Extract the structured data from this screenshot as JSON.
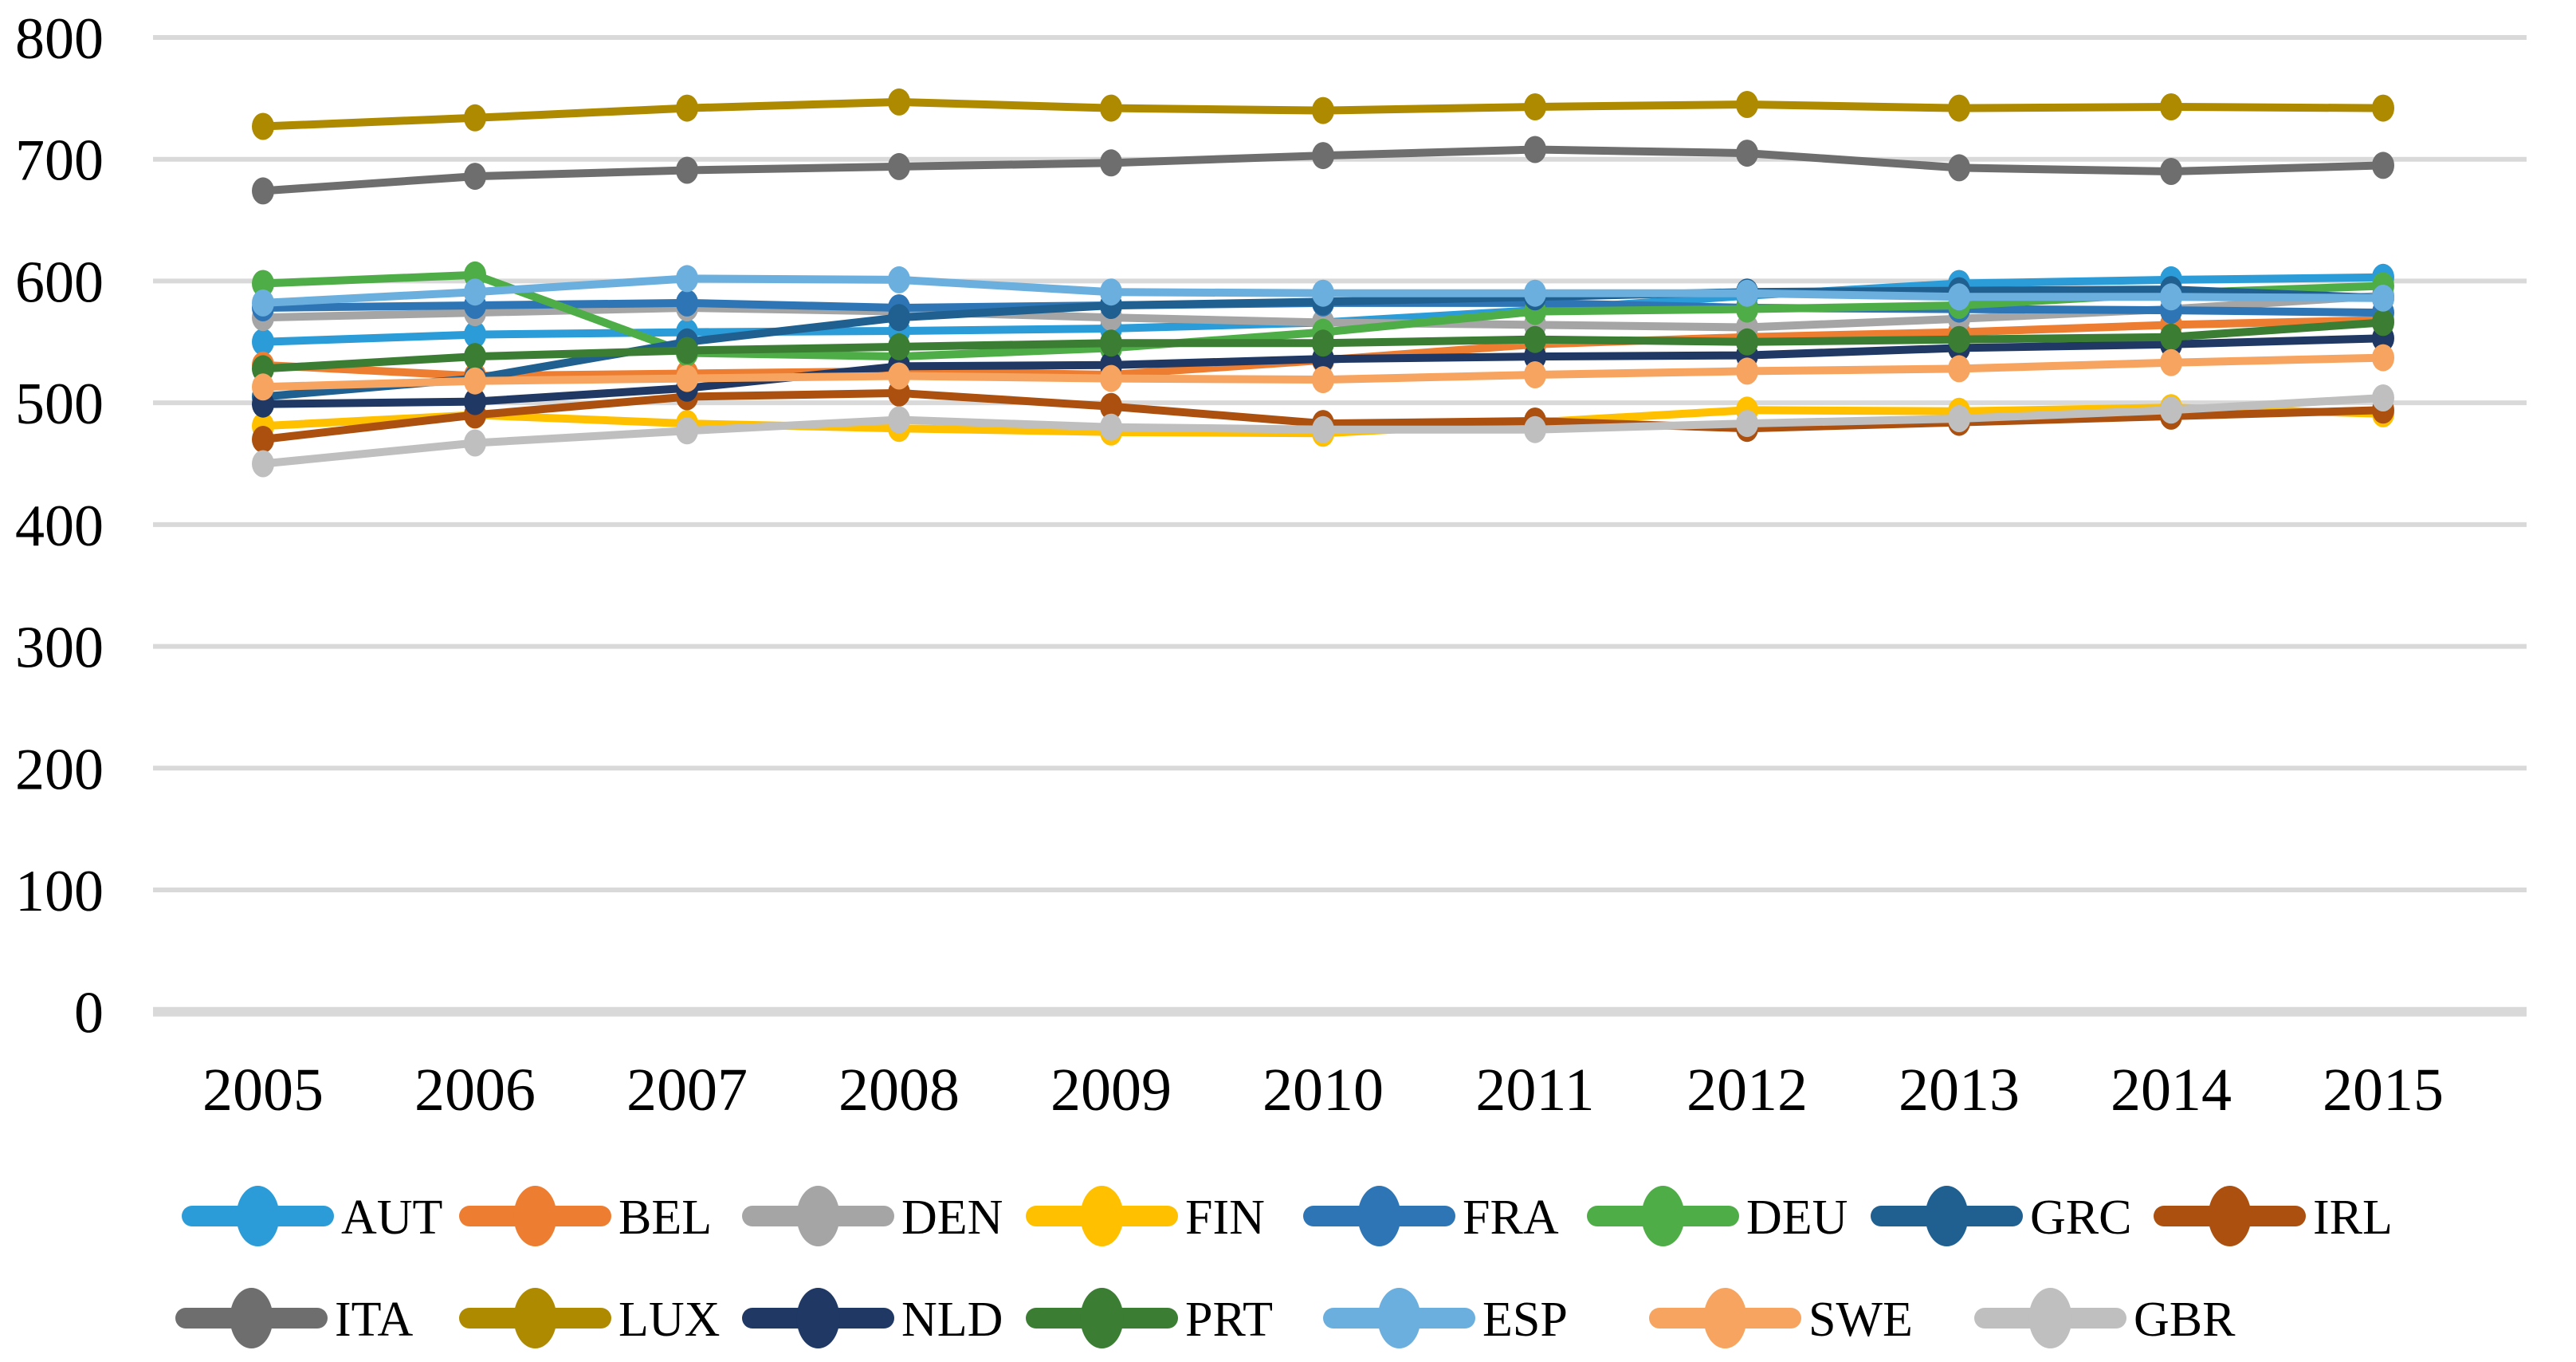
{
  "chart_data": {
    "type": "line",
    "title": "",
    "xlabel": "",
    "ylabel": "",
    "categories": [
      "2005",
      "2006",
      "2007",
      "2008",
      "2009",
      "2010",
      "2011",
      "2012",
      "2013",
      "2014",
      "2015"
    ],
    "ylim": [
      0,
      800
    ],
    "yticks": [
      0,
      100,
      200,
      300,
      400,
      500,
      600,
      700,
      800
    ],
    "grid": "horizontal",
    "gridline_color": "#D9D9D9",
    "legend_position": "bottom",
    "legend_rows": [
      [
        "AUT",
        "BEL",
        "DEN",
        "FIN",
        "FRA",
        "DEU",
        "GRC",
        "IRL"
      ],
      [
        "ITA",
        "LUX",
        "NLD",
        "PRT",
        "ESP",
        "SWE",
        "GBR"
      ]
    ],
    "series": [
      {
        "name": "AUT",
        "color": "#2B9CD8",
        "values": [
          550,
          556,
          558,
          559,
          561,
          566,
          576,
          588,
          598,
          601,
          603
        ]
      },
      {
        "name": "BEL",
        "color": "#ED7D31",
        "values": [
          531,
          522,
          524,
          526,
          523,
          535,
          548,
          554,
          558,
          564,
          568
        ]
      },
      {
        "name": "DEN",
        "color": "#A5A5A5",
        "values": [
          570,
          574,
          578,
          575,
          570,
          566,
          564,
          562,
          569,
          577,
          588
        ]
      },
      {
        "name": "FIN",
        "color": "#FFC000",
        "values": [
          481,
          490,
          483,
          479,
          476,
          475,
          484,
          494,
          493,
          496,
          491
        ]
      },
      {
        "name": "FRA",
        "color": "#2E75B6",
        "values": [
          578,
          580,
          582,
          578,
          580,
          582,
          582,
          578,
          577,
          576,
          574
        ]
      },
      {
        "name": "DEU",
        "color": "#4FAD47",
        "values": [
          598,
          605,
          541,
          538,
          545,
          558,
          575,
          577,
          580,
          590,
          596
        ]
      },
      {
        "name": "GRC",
        "color": "#1F6091",
        "values": [
          505,
          520,
          550,
          570,
          580,
          583,
          587,
          591,
          592,
          593,
          586
        ]
      },
      {
        "name": "IRL",
        "color": "#AC500F",
        "values": [
          470,
          490,
          505,
          508,
          497,
          483,
          485,
          479,
          484,
          489,
          494
        ]
      },
      {
        "name": "ITA",
        "color": "#6E6E6E",
        "values": [
          674,
          686,
          691,
          694,
          697,
          703,
          708,
          705,
          693,
          690,
          695
        ]
      },
      {
        "name": "LUX",
        "color": "#AE8A00",
        "values": [
          727,
          734,
          742,
          747,
          742,
          740,
          743,
          745,
          742,
          743,
          742
        ]
      },
      {
        "name": "NLD",
        "color": "#1F3864",
        "values": [
          499,
          501,
          512,
          530,
          531,
          536,
          538,
          539,
          545,
          548,
          553
        ]
      },
      {
        "name": "PRT",
        "color": "#3A7D33",
        "values": [
          528,
          538,
          543,
          546,
          549,
          549,
          552,
          550,
          552,
          554,
          566
        ]
      },
      {
        "name": "ESP",
        "color": "#6BAFDF",
        "values": [
          582,
          591,
          602,
          601,
          591,
          590,
          590,
          590,
          587,
          587,
          586
        ]
      },
      {
        "name": "SWE",
        "color": "#F6A45F",
        "values": [
          513,
          518,
          520,
          522,
          520,
          519,
          523,
          526,
          528,
          533,
          537
        ]
      },
      {
        "name": "GBR",
        "color": "#BFBFBF",
        "values": [
          450,
          467,
          477,
          486,
          480,
          478,
          478,
          483,
          487,
          494,
          504
        ]
      }
    ]
  }
}
